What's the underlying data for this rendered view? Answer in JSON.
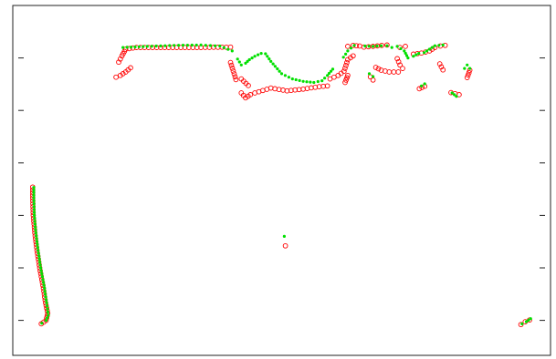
{
  "chart_data": {
    "type": "scatter",
    "title": "",
    "xlabel": "",
    "ylabel": "",
    "xlim": [
      0,
      100
    ],
    "ylim": [
      0,
      100
    ],
    "grid": false,
    "ticks": {
      "x": [],
      "y": [
        10,
        25,
        40,
        55,
        70,
        85
      ]
    },
    "series": [
      {
        "marker": "open-circle",
        "color": "#ff0000",
        "segments": [
          [
            [
              3.7,
              48.1
            ],
            [
              3.7,
              45.0
            ],
            [
              3.8,
              40.0
            ],
            [
              4.1,
              35.0
            ],
            [
              4.5,
              30.0
            ],
            [
              5.0,
              25.0
            ],
            [
              5.6,
              20.0
            ],
            [
              6.1,
              15.0
            ],
            [
              6.5,
              12.0
            ],
            [
              6.2,
              10.0
            ],
            [
              5.3,
              9.0
            ]
          ],
          [
            [
              19.2,
              79.5
            ],
            [
              20.0,
              80.0
            ],
            [
              21.0,
              81.0
            ],
            [
              21.9,
              82.2
            ]
          ],
          [
            [
              19.7,
              83.8
            ],
            [
              20.3,
              85.6
            ],
            [
              21.0,
              87.5
            ],
            [
              23.0,
              88.0
            ],
            [
              29.0,
              88.0
            ],
            [
              35.0,
              88.0
            ],
            [
              40.5,
              88.1
            ]
          ],
          [
            [
              40.5,
              83.7
            ],
            [
              41.5,
              78.8
            ],
            [
              42.5,
              79.0
            ],
            [
              43.8,
              77.1
            ]
          ],
          [
            [
              42.5,
              75.0
            ],
            [
              43.3,
              73.6
            ],
            [
              44.2,
              74.5
            ]
          ],
          [
            [
              45.0,
              75.0
            ],
            [
              48.0,
              76.4
            ],
            [
              51.0,
              75.6
            ],
            [
              54.0,
              76.1
            ],
            [
              57.0,
              76.8
            ],
            [
              58.5,
              77.0
            ]
          ],
          [
            [
              50.7,
              31.3
            ]
          ],
          [
            [
              59.0,
              79.0
            ],
            [
              60.5,
              80.0
            ],
            [
              61.6,
              81.2
            ],
            [
              62.3,
              84.5
            ],
            [
              63.3,
              85.6
            ]
          ],
          [
            [
              61.8,
              78.0
            ],
            [
              62.3,
              80.0
            ]
          ],
          [
            [
              62.3,
              88.3
            ],
            [
              63.3,
              88.6
            ],
            [
              64.5,
              88.4
            ]
          ],
          [
            [
              65.3,
              88.1
            ],
            [
              67.0,
              88.3
            ],
            [
              68.6,
              88.6
            ],
            [
              69.6,
              88.7
            ]
          ],
          [
            [
              66.5,
              79.6
            ],
            [
              67.0,
              78.7
            ]
          ],
          [
            [
              67.5,
              82.3
            ],
            [
              68.5,
              81.5
            ],
            [
              70.0,
              81.0
            ],
            [
              71.7,
              81.0
            ]
          ],
          [
            [
              71.5,
              84.8
            ],
            [
              72.0,
              83.0
            ],
            [
              72.5,
              82.0
            ]
          ],
          [
            [
              72.0,
              88.0
            ],
            [
              73.0,
              88.3
            ]
          ],
          [
            [
              74.5,
              86.1
            ],
            [
              76.0,
              86.4
            ],
            [
              77.5,
              87.0
            ],
            [
              78.5,
              88.0
            ],
            [
              79.5,
              88.4
            ],
            [
              80.4,
              88.6
            ]
          ],
          [
            [
              75.6,
              76.2
            ],
            [
              76.6,
              76.9
            ]
          ],
          [
            [
              79.4,
              83.3
            ],
            [
              80.0,
              81.6
            ]
          ],
          [
            [
              81.5,
              75.1
            ],
            [
              83.0,
              74.5
            ]
          ],
          [
            [
              84.5,
              79.4
            ],
            [
              85.0,
              81.5
            ]
          ],
          [
            [
              94.5,
              8.8
            ],
            [
              95.3,
              9.6
            ],
            [
              96.1,
              10.1
            ]
          ]
        ]
      },
      {
        "marker": "filled-dot",
        "color": "#00e000",
        "segments": [
          [
            [
              3.9,
              48.0
            ],
            [
              3.9,
              45.0
            ],
            [
              4.0,
              40.0
            ],
            [
              4.3,
              35.0
            ],
            [
              4.7,
              30.0
            ],
            [
              5.2,
              25.0
            ],
            [
              5.8,
              20.0
            ],
            [
              6.3,
              15.0
            ],
            [
              6.6,
              11.5
            ],
            [
              6.2,
              10.0
            ],
            [
              5.4,
              9.2
            ]
          ],
          [
            [
              20.5,
              88.0
            ],
            [
              25.0,
              88.3
            ],
            [
              30.0,
              88.6
            ],
            [
              35.0,
              88.7
            ],
            [
              38.5,
              88.4
            ],
            [
              40.8,
              87.0
            ]
          ],
          [
            [
              41.8,
              84.7
            ],
            [
              42.5,
              83.0
            ],
            [
              43.3,
              83.5
            ],
            [
              44.0,
              84.5
            ],
            [
              45.0,
              85.5
            ],
            [
              46.2,
              86.3
            ],
            [
              47.0,
              86.2
            ],
            [
              48.0,
              84.0
            ],
            [
              50.0,
              80.5
            ],
            [
              52.0,
              79.0
            ],
            [
              54.0,
              78.3
            ],
            [
              56.0,
              78.0
            ],
            [
              57.5,
              78.5
            ],
            [
              58.5,
              80.0
            ],
            [
              59.5,
              81.8
            ]
          ],
          [
            [
              50.5,
              34.0
            ]
          ],
          [
            [
              61.5,
              85.2
            ],
            [
              62.3,
              87.0
            ],
            [
              63.5,
              88.6
            ]
          ],
          [
            [
              65.5,
              88.4
            ],
            [
              67.0,
              88.3
            ],
            [
              68.5,
              88.5
            ],
            [
              69.6,
              88.5
            ]
          ],
          [
            [
              66.3,
              80.5
            ],
            [
              67.0,
              79.7
            ]
          ],
          [
            [
              70.5,
              88.0
            ],
            [
              71.5,
              88.3
            ],
            [
              72.8,
              87.0
            ],
            [
              73.5,
              85.0
            ]
          ],
          [
            [
              74.5,
              85.5
            ],
            [
              75.5,
              86.3
            ],
            [
              76.5,
              86.5
            ],
            [
              77.5,
              87.5
            ],
            [
              78.5,
              88.5
            ],
            [
              80.0,
              88.7
            ]
          ],
          [
            [
              76.0,
              77.0
            ],
            [
              76.6,
              77.6
            ]
          ],
          [
            [
              81.7,
              75.0
            ],
            [
              82.5,
              74.0
            ]
          ],
          [
            [
              84.0,
              82.0
            ],
            [
              84.5,
              83.0
            ],
            [
              85.0,
              82.0
            ]
          ],
          [
            [
              94.7,
              9.0
            ],
            [
              95.5,
              9.6
            ],
            [
              96.3,
              10.5
            ]
          ]
        ]
      }
    ]
  }
}
